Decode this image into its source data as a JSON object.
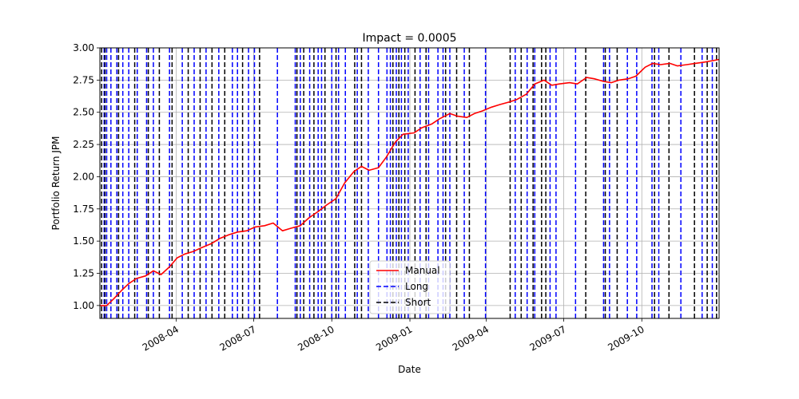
{
  "chart_data": {
    "type": "line",
    "title": "Impact = 0.0005",
    "xlabel": "Date",
    "ylabel": "Portfolio Return JPM",
    "xlim": [
      "2008-01-02",
      "2009-12-31"
    ],
    "ylim": [
      0.9,
      3.0
    ],
    "yticks": [
      1.0,
      1.25,
      1.5,
      1.75,
      2.0,
      2.25,
      2.5,
      2.75,
      3.0
    ],
    "ytick_labels": [
      "1.00",
      "1.25",
      "1.50",
      "1.75",
      "2.00",
      "2.25",
      "2.50",
      "2.75",
      "3.00"
    ],
    "xticks": [
      "2008-04-01",
      "2008-07-01",
      "2008-10-01",
      "2009-01-01",
      "2009-04-01",
      "2009-07-01",
      "2009-10-01"
    ],
    "xtick_labels": [
      "2008-04",
      "2008-07",
      "2008-10",
      "2009-01",
      "2009-04",
      "2009-07",
      "2009-10"
    ],
    "grid": true,
    "legend_position": "lower-center",
    "series": [
      {
        "name": "Manual",
        "color": "#ff0000",
        "style": "solid",
        "x": [
          "2008-01-02",
          "2008-01-10",
          "2008-01-18",
          "2008-01-28",
          "2008-02-05",
          "2008-02-14",
          "2008-02-25",
          "2008-03-05",
          "2008-03-14",
          "2008-03-24",
          "2008-04-02",
          "2008-04-11",
          "2008-04-21",
          "2008-05-01",
          "2008-05-12",
          "2008-05-22",
          "2008-06-02",
          "2008-06-12",
          "2008-06-23",
          "2008-07-03",
          "2008-07-14",
          "2008-07-24",
          "2008-08-04",
          "2008-08-14",
          "2008-08-25",
          "2008-09-04",
          "2008-09-15",
          "2008-09-25",
          "2008-10-06",
          "2008-10-16",
          "2008-10-27",
          "2008-11-05",
          "2008-11-14",
          "2008-11-25",
          "2008-12-04",
          "2008-12-15",
          "2008-12-24",
          "2009-01-06",
          "2009-01-15",
          "2009-01-27",
          "2009-02-05",
          "2009-02-17",
          "2009-02-26",
          "2009-03-09",
          "2009-03-18",
          "2009-03-27",
          "2009-04-07",
          "2009-04-17",
          "2009-04-28",
          "2009-05-07",
          "2009-05-18",
          "2009-05-28",
          "2009-06-08",
          "2009-06-17",
          "2009-06-26",
          "2009-07-08",
          "2009-07-17",
          "2009-07-28",
          "2009-08-06",
          "2009-08-17",
          "2009-08-26",
          "2009-09-04",
          "2009-09-15",
          "2009-09-24",
          "2009-10-05",
          "2009-10-14",
          "2009-10-23",
          "2009-11-03",
          "2009-11-12",
          "2009-11-23",
          "2009-12-03",
          "2009-12-14",
          "2009-12-31"
        ],
        "y": [
          1.0,
          1.0,
          1.05,
          1.12,
          1.17,
          1.21,
          1.23,
          1.27,
          1.24,
          1.3,
          1.37,
          1.4,
          1.42,
          1.45,
          1.48,
          1.52,
          1.55,
          1.57,
          1.58,
          1.61,
          1.62,
          1.64,
          1.58,
          1.6,
          1.62,
          1.68,
          1.73,
          1.78,
          1.83,
          1.95,
          2.04,
          2.08,
          2.05,
          2.07,
          2.15,
          2.27,
          2.33,
          2.34,
          2.38,
          2.41,
          2.45,
          2.49,
          2.47,
          2.46,
          2.49,
          2.51,
          2.54,
          2.56,
          2.58,
          2.6,
          2.64,
          2.72,
          2.75,
          2.71,
          2.72,
          2.73,
          2.72,
          2.77,
          2.76,
          2.74,
          2.73,
          2.75,
          2.76,
          2.78,
          2.85,
          2.88,
          2.87,
          2.88,
          2.86,
          2.87,
          2.88,
          2.89,
          2.91
        ]
      },
      {
        "name": "Long",
        "color": "#0000ff",
        "style": "dashed-vertical",
        "x": [
          "2008-01-07",
          "2008-01-10",
          "2008-01-15",
          "2008-01-22",
          "2008-01-29",
          "2008-02-05",
          "2008-02-15",
          "2008-02-26",
          "2008-03-05",
          "2008-03-24",
          "2008-04-08",
          "2008-04-22",
          "2008-05-06",
          "2008-05-21",
          "2008-06-06",
          "2008-06-12",
          "2008-06-25",
          "2008-07-02",
          "2008-07-29",
          "2008-08-19",
          "2008-08-25",
          "2008-09-05",
          "2008-09-15",
          "2008-09-19",
          "2008-10-01",
          "2008-10-09",
          "2008-10-17",
          "2008-10-31",
          "2008-11-13",
          "2008-11-25",
          "2008-12-05",
          "2008-12-09",
          "2008-12-16",
          "2008-12-22",
          "2008-12-30",
          "2009-01-13",
          "2009-01-23",
          "2009-02-03",
          "2009-02-09",
          "2009-02-17",
          "2009-03-06",
          "2009-03-31",
          "2009-05-05",
          "2009-05-19",
          "2009-05-28",
          "2009-06-15",
          "2009-06-22",
          "2009-07-15",
          "2009-08-17",
          "2009-08-24",
          "2009-09-14",
          "2009-09-25",
          "2009-10-13",
          "2009-10-21",
          "2009-11-16",
          "2009-12-11",
          "2009-12-23"
        ]
      },
      {
        "name": "Short",
        "color": "#000000",
        "style": "dashed-vertical",
        "x": [
          "2008-01-04",
          "2008-01-08",
          "2008-01-24",
          "2008-02-12",
          "2008-02-28",
          "2008-03-12",
          "2008-03-27",
          "2008-04-15",
          "2008-04-29",
          "2008-05-13",
          "2008-05-28",
          "2008-06-18",
          "2008-07-08",
          "2008-08-21",
          "2008-08-29",
          "2008-09-10",
          "2008-09-23",
          "2008-10-06",
          "2008-10-28",
          "2008-11-05",
          "2008-12-12",
          "2008-12-19",
          "2008-12-26",
          "2009-01-07",
          "2009-01-20",
          "2009-02-12",
          "2009-02-25",
          "2009-03-12",
          "2009-04-29",
          "2009-05-12",
          "2009-05-26",
          "2009-06-05",
          "2009-06-10",
          "2009-07-27",
          "2009-08-19",
          "2009-09-02",
          "2009-10-16",
          "2009-11-02",
          "2009-12-02",
          "2009-12-17",
          "2009-12-28"
        ]
      }
    ]
  }
}
